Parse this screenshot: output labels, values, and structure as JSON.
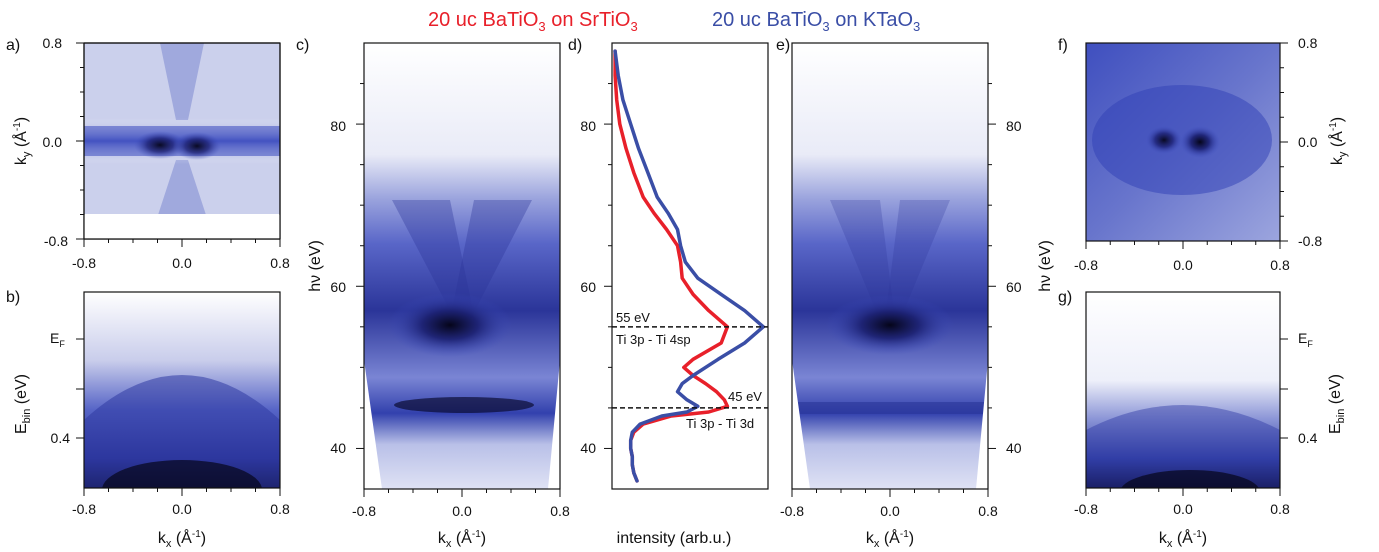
{
  "colors": {
    "sto": "#e8202a",
    "kto": "#3a4ea6",
    "map_low": "#ffffff",
    "map_mid": "#3d4dc0",
    "map_high": "#05051a"
  },
  "header": {
    "sto_text": "20 uc BaTiO",
    "sto_sub": "3",
    "sto_tail": " on SrTiO",
    "sto_sub2": "3",
    "kto_text": "20 uc BaTiO",
    "kto_sub": "3",
    "kto_tail": " on KTaO",
    "kto_sub2": "3"
  },
  "panels": {
    "a": "a)",
    "b": "b)",
    "c": "c)",
    "d": "d)",
    "e": "e)",
    "f": "f)",
    "g": "g)"
  },
  "axes": {
    "kx_main": "k",
    "kx_sub": "x",
    "kx_unit": " (Å",
    "kx_sup": "-1",
    "kx_close": ")",
    "ky_main": "k",
    "ky_sub": "y",
    "ky_unit": " (Å",
    "ky_sup": "-1",
    "ky_close": ")",
    "hv": "hν (eV)",
    "ebin_main": "E",
    "ebin_sub": "bin",
    "ebin_unit": " (eV)",
    "ef_main": "E",
    "ef_sub": "F",
    "intensity": "intensity (arb.u.)"
  },
  "ticks": {
    "k": [
      "-0.8",
      "0.0",
      "0.8"
    ],
    "ky": [
      "0.8",
      "0.0",
      "-0.8"
    ],
    "hv": [
      "80",
      "60",
      "40"
    ],
    "ebin": [
      "0.4"
    ]
  },
  "annotations": {
    "e55": "55 eV",
    "t55": "Ti 3p - Ti 4sp",
    "e45": "45 eV",
    "t45": "Ti 3p - Ti 3d"
  },
  "chart_data": [
    {
      "panel": "a",
      "type": "heatmap",
      "xlabel": "kx (Å-1)",
      "ylabel": "ky (Å-1)",
      "xlim": [
        -0.8,
        0.8
      ],
      "ylim": [
        -0.8,
        0.8
      ],
      "xticks": [
        -0.8,
        0.0,
        0.8
      ],
      "yticks": [
        -0.8,
        0.0,
        0.8
      ]
    },
    {
      "panel": "b",
      "type": "heatmap",
      "xlabel": "kx (Å-1)",
      "ylabel": "Ebin (eV)",
      "xlim": [
        -0.8,
        0.8
      ],
      "xticks": [
        -0.8,
        0.0,
        0.8
      ],
      "yticks": [
        "EF",
        0.4
      ]
    },
    {
      "panel": "c",
      "type": "heatmap",
      "xlabel": "kx (Å-1)",
      "ylabel": "hν (eV)",
      "xlim": [
        -0.8,
        0.8
      ],
      "ylim": [
        35,
        90
      ],
      "xticks": [
        -0.8,
        0.0,
        0.8
      ],
      "yticks": [
        40,
        60,
        80
      ]
    },
    {
      "panel": "d",
      "type": "line",
      "xlabel": "intensity (arb.u.)",
      "ylabel": "hν (eV)",
      "ylim": [
        35,
        90
      ],
      "yticks": [
        40,
        60,
        80
      ],
      "series": [
        {
          "name": "20 uc BaTiO3 on SrTiO3",
          "color": "#e8202a",
          "hv": [
            89,
            86,
            83,
            80,
            77,
            74,
            71,
            69,
            67,
            65,
            63,
            61,
            59,
            57,
            55,
            53,
            51,
            50,
            49,
            48,
            47,
            46,
            45.2,
            44.5,
            44,
            43,
            42,
            41,
            40,
            39,
            38,
            37,
            36
          ],
          "intensity": [
            0.02,
            0.02,
            0.03,
            0.05,
            0.09,
            0.14,
            0.2,
            0.27,
            0.35,
            0.42,
            0.44,
            0.45,
            0.52,
            0.62,
            0.74,
            0.7,
            0.52,
            0.46,
            0.52,
            0.6,
            0.67,
            0.72,
            0.74,
            0.62,
            0.38,
            0.2,
            0.14,
            0.12,
            0.12,
            0.13,
            0.13,
            0.14,
            0.16
          ]
        },
        {
          "name": "20 uc BaTiO3 on KTaO3",
          "color": "#3a4ea6",
          "hv": [
            89,
            86,
            83,
            80,
            77,
            74,
            71,
            69,
            67,
            65,
            63,
            61,
            59,
            57,
            55,
            53,
            51,
            49,
            48,
            47,
            46,
            45.2,
            44.5,
            44,
            43,
            42,
            41,
            40,
            39,
            38,
            37,
            36
          ],
          "intensity": [
            0.02,
            0.04,
            0.07,
            0.12,
            0.17,
            0.23,
            0.29,
            0.36,
            0.42,
            0.44,
            0.47,
            0.55,
            0.7,
            0.85,
            0.97,
            0.85,
            0.68,
            0.52,
            0.45,
            0.42,
            0.48,
            0.55,
            0.48,
            0.32,
            0.18,
            0.13,
            0.12,
            0.12,
            0.13,
            0.13,
            0.14,
            0.16
          ]
        }
      ],
      "annotations": [
        {
          "hv": 55,
          "text": "55 eV",
          "label": "Ti 3p - Ti 4sp"
        },
        {
          "hv": 45,
          "text": "45 eV",
          "label": "Ti 3p - Ti 3d"
        }
      ]
    },
    {
      "panel": "e",
      "type": "heatmap",
      "xlabel": "kx (Å-1)",
      "ylabel": "hν (eV)",
      "xlim": [
        -0.8,
        0.8
      ],
      "ylim": [
        35,
        90
      ],
      "xticks": [
        -0.8,
        0.0,
        0.8
      ],
      "yticks": [
        40,
        60,
        80
      ]
    },
    {
      "panel": "f",
      "type": "heatmap",
      "xlabel": "",
      "ylabel": "ky (Å-1)",
      "xlim": [
        -0.8,
        0.8
      ],
      "ylim": [
        -0.8,
        0.8
      ],
      "xticks": [
        -0.8,
        0.0,
        0.8
      ],
      "yticks": [
        -0.8,
        0.0,
        0.8
      ]
    },
    {
      "panel": "g",
      "type": "heatmap",
      "xlabel": "kx (Å-1)",
      "ylabel": "Ebin (eV)",
      "xlim": [
        -0.8,
        0.8
      ],
      "xticks": [
        -0.8,
        0.0,
        0.8
      ],
      "yticks": [
        "EF",
        0.4
      ]
    }
  ]
}
